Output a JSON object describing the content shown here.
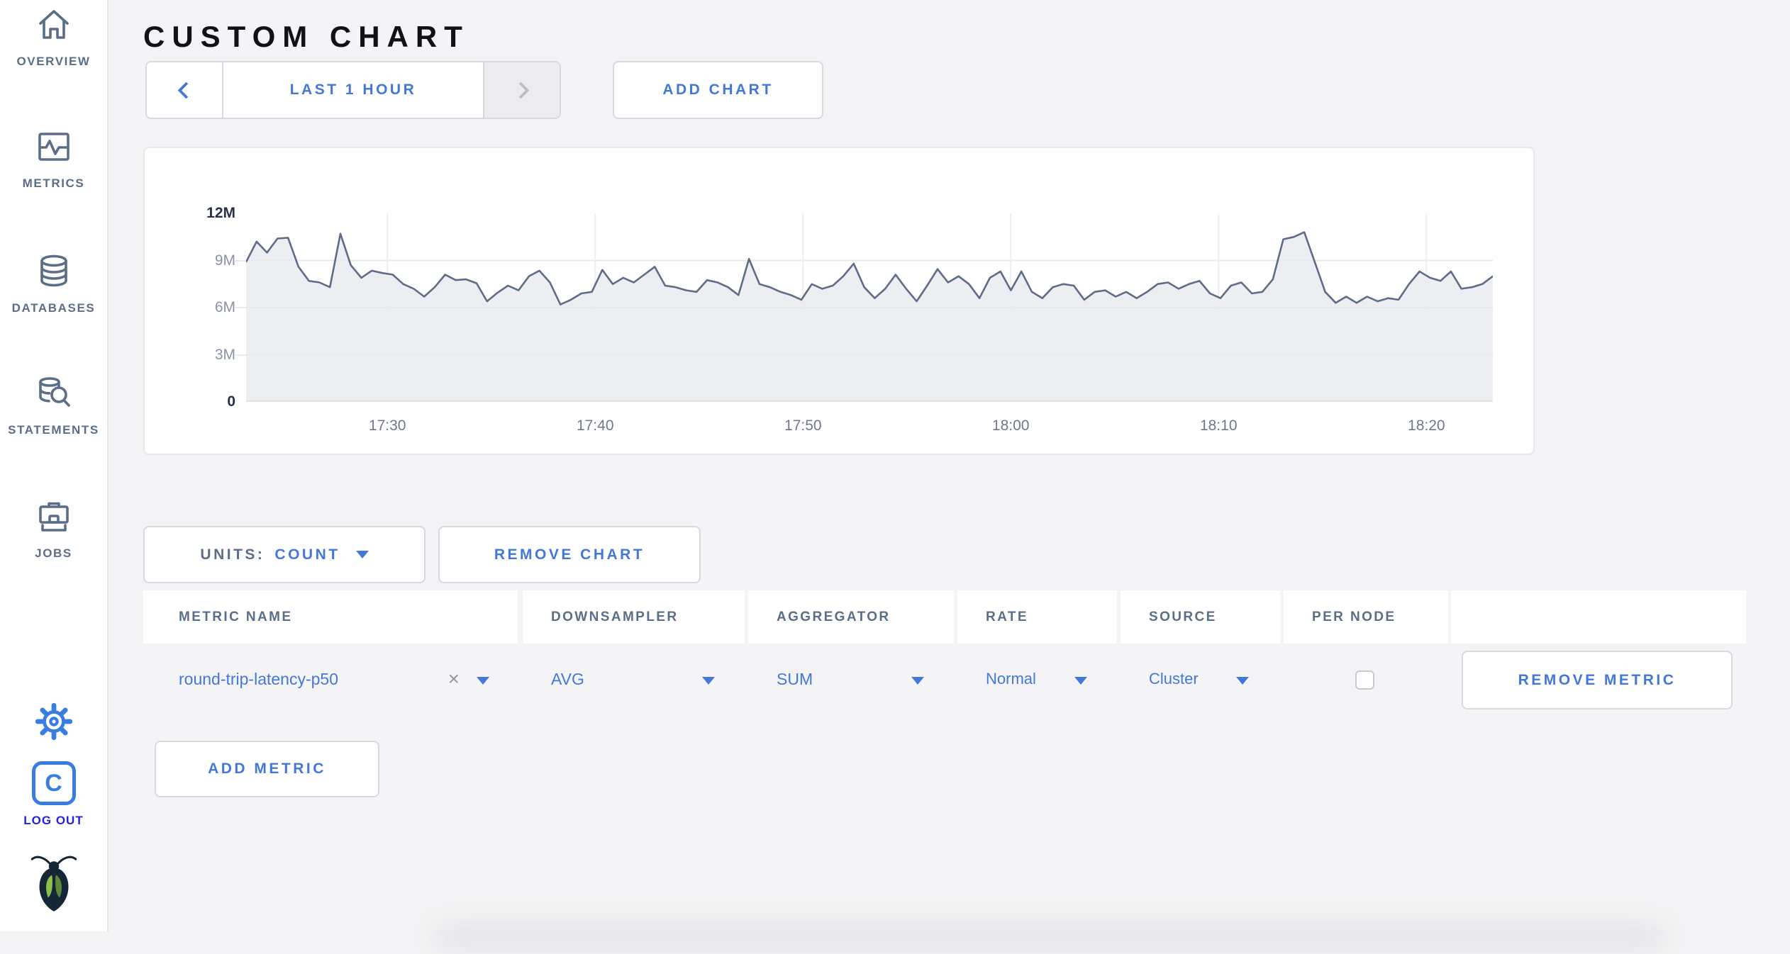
{
  "header": {
    "title": "CUSTOM CHART"
  },
  "sidebar": {
    "items": [
      {
        "label": "OVERVIEW"
      },
      {
        "label": "METRICS"
      },
      {
        "label": "DATABASES"
      },
      {
        "label": "STATEMENTS"
      },
      {
        "label": "JOBS"
      }
    ],
    "logout_label": "LOG OUT"
  },
  "toolbar": {
    "time_range_label": "LAST 1 HOUR",
    "add_chart_label": "ADD CHART"
  },
  "chart_controls": {
    "units_label": "UNITS:",
    "units_value": "COUNT",
    "remove_chart_label": "REMOVE CHART"
  },
  "metrics_table": {
    "columns": [
      "METRIC NAME",
      "DOWNSAMPLER",
      "AGGREGATOR",
      "RATE",
      "SOURCE",
      "PER NODE",
      ""
    ],
    "rows": [
      {
        "metric_name": "round-trip-latency-p50",
        "downsampler": "AVG",
        "aggregator": "SUM",
        "rate": "Normal",
        "source": "Cluster",
        "per_node_checked": false,
        "remove_label": "REMOVE METRIC"
      }
    ],
    "add_metric_label": "ADD METRIC"
  },
  "colors": {
    "accent_blue": "#4478d8",
    "slate": "#5b6e88",
    "logout_blue": "#2323dd",
    "icon_blue": "#3a7de1",
    "roach_body": "#152736",
    "roach_wing_light": "#8cbf4f",
    "roach_wing_dark": "#5c8a36"
  },
  "chart_data": {
    "type": "area",
    "title": "",
    "series_name": "round-trip-latency-p50 (AVG, SUM, Normal, Cluster)",
    "y_unit": "count (millions)",
    "x_axis": {
      "start": "17:23",
      "end": "18:23",
      "ticks": [
        {
          "label": "17:30",
          "f": 0.1133
        },
        {
          "label": "17:40",
          "f": 0.28
        },
        {
          "label": "17:50",
          "f": 0.4467
        },
        {
          "label": "18:00",
          "f": 0.6133
        },
        {
          "label": "18:10",
          "f": 0.78
        },
        {
          "label": "18:20",
          "f": 0.9467
        }
      ]
    },
    "y_axis": {
      "max_millions": 12,
      "ticks": [
        {
          "v": 12,
          "label": "12M",
          "strong": true,
          "grid": false
        },
        {
          "v": 9,
          "label": "9M",
          "strong": false,
          "grid": true
        },
        {
          "v": 6,
          "label": "6M",
          "strong": false,
          "grid": true
        },
        {
          "v": 3,
          "label": "3M",
          "strong": false,
          "grid": true
        },
        {
          "v": 0,
          "label": "0",
          "strong": true,
          "grid": false
        }
      ]
    },
    "values_millions": [
      8.9,
      10.2,
      9.5,
      10.4,
      10.45,
      8.6,
      7.7,
      7.6,
      7.3,
      10.7,
      8.7,
      7.9,
      8.35,
      8.2,
      8.1,
      7.5,
      7.2,
      6.7,
      7.3,
      8.1,
      7.75,
      7.8,
      7.55,
      6.4,
      6.95,
      7.4,
      7.1,
      8.0,
      8.35,
      7.6,
      6.2,
      6.5,
      6.9,
      7.0,
      8.4,
      7.5,
      7.9,
      7.6,
      8.1,
      8.6,
      7.4,
      7.3,
      7.1,
      7.0,
      7.75,
      7.6,
      7.3,
      6.8,
      9.1,
      7.5,
      7.3,
      7.0,
      6.8,
      6.5,
      7.5,
      7.2,
      7.4,
      8.0,
      8.8,
      7.3,
      6.6,
      7.2,
      8.1,
      7.2,
      6.4,
      7.4,
      8.45,
      7.6,
      8.0,
      7.5,
      6.6,
      7.9,
      8.3,
      7.1,
      8.3,
      7.0,
      6.6,
      7.3,
      7.5,
      7.4,
      6.5,
      7.0,
      7.1,
      6.7,
      7.0,
      6.6,
      7.0,
      7.5,
      7.6,
      7.2,
      7.5,
      7.7,
      6.9,
      6.6,
      7.4,
      7.6,
      6.9,
      7.0,
      7.8,
      10.35,
      10.5,
      10.8,
      8.9,
      7.0,
      6.3,
      6.7,
      6.3,
      6.7,
      6.4,
      6.6,
      6.5,
      7.5,
      8.3,
      7.9,
      7.7,
      8.3,
      7.2,
      7.3,
      7.5,
      8.0
    ],
    "line_color": "#5f6c87",
    "fill_color": "#edeef2",
    "grid_color": "#e7e9ec",
    "legend": "none",
    "grid": true
  }
}
